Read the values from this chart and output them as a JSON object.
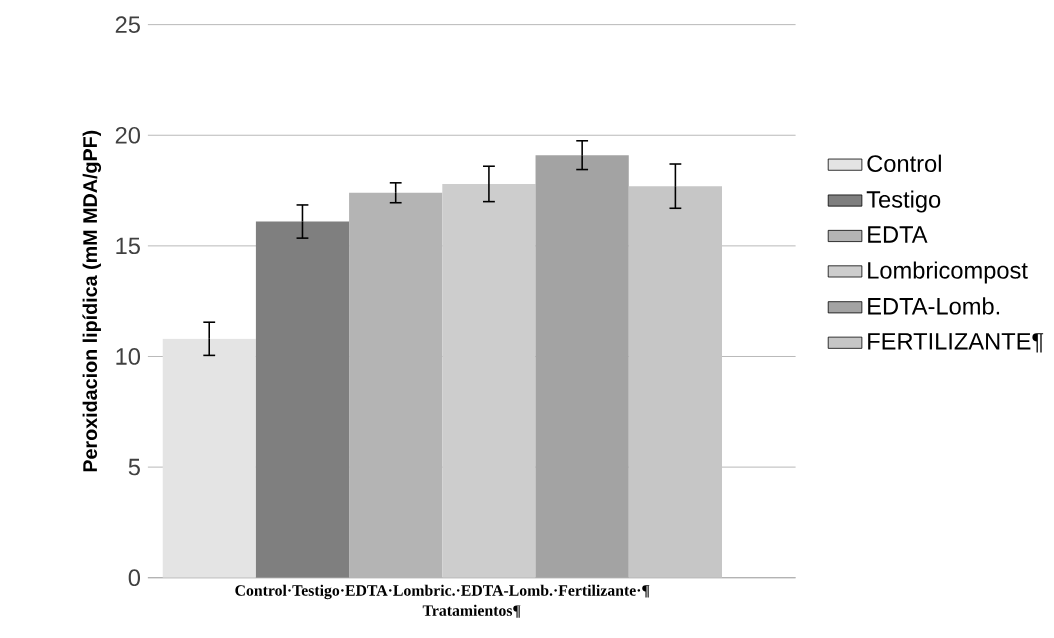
{
  "chart_data": {
    "type": "bar",
    "ylabel": "Peroxidacion lipídica (mM MDA/gPF)",
    "xlabel": "Tratamientos¶",
    "categories": [
      "Control·Testigo·EDTA·Lombric.·EDTA-Lomb.·Fertilizante·¶"
    ],
    "series": [
      {
        "name": "Control",
        "color": "#e4e4e4",
        "values": [
          10.8
        ],
        "errors": [
          0.75
        ]
      },
      {
        "name": "Testigo",
        "color": "#7f7f7f",
        "values": [
          16.1
        ],
        "errors": [
          0.75
        ]
      },
      {
        "name": "EDTA",
        "color": "#b4b4b4",
        "values": [
          17.4
        ],
        "errors": [
          0.45
        ]
      },
      {
        "name": "Lombricompost",
        "color": "#cdcdcd",
        "values": [
          17.8
        ],
        "errors": [
          0.8
        ]
      },
      {
        "name": "EDTA-Lomb.",
        "color": "#a3a3a3",
        "values": [
          19.1
        ],
        "errors": [
          0.65
        ]
      },
      {
        "name": "FERTILIZANTE¶",
        "color": "#c6c6c6",
        "values": [
          17.7
        ],
        "errors": [
          1.0
        ]
      }
    ],
    "ylim": [
      0,
      25
    ],
    "yticks": [
      0,
      5,
      10,
      15,
      20,
      25
    ],
    "grid": "y",
    "legend": "right"
  }
}
